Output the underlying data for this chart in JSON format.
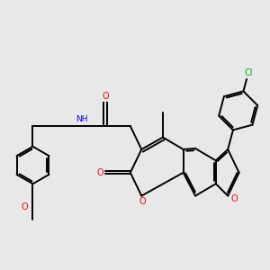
{
  "background_color": "#e8e8e8",
  "bond_color": "#000000",
  "bond_width": 1.4,
  "atom_colors": {
    "O": "#ff0000",
    "N": "#0000ff",
    "Cl": "#00b300",
    "C": "#000000"
  },
  "figsize": [
    3.0,
    3.0
  ],
  "dpi": 100
}
